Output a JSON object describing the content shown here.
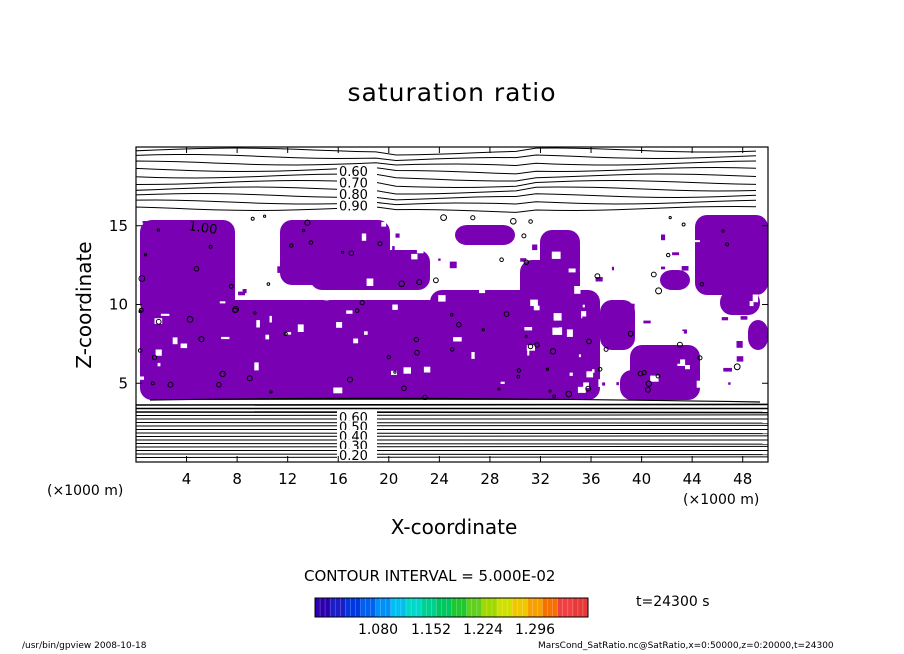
{
  "chart_data": {
    "type": "heatmap",
    "title": "saturation ratio",
    "xlabel": "X-coordinate",
    "ylabel": "Z-coordinate",
    "x_unit_label": "(×1000 m)",
    "xlim": [
      0,
      50
    ],
    "ylim": [
      0,
      20
    ],
    "x_ticks": [
      4,
      8,
      12,
      16,
      20,
      24,
      28,
      32,
      36,
      40,
      44,
      48
    ],
    "y_ticks": [
      5,
      10,
      15
    ],
    "contour_interval_text": "CONTOUR INTERVAL = 5.000E-02",
    "contour_labels_upper": [
      "0.60",
      "0.70",
      "0.80",
      "0.90"
    ],
    "contour_labels_lower": [
      "0.60",
      "0.50",
      "0.40",
      "0.30",
      "0.20"
    ],
    "contour_label_inline": "1.00",
    "shaded_threshold": 1.0,
    "shaded_color": "#7a00b4",
    "colorbar": {
      "tick_labels": [
        "1.080",
        "1.152",
        "1.224",
        "1.296"
      ],
      "colors": [
        "#2c00b0",
        "#1c1cc8",
        "#0038e0",
        "#0060f0",
        "#0090f8",
        "#00c0f0",
        "#00d8c8",
        "#00d090",
        "#00c860",
        "#20c830",
        "#60d020",
        "#a0d800",
        "#d0e000",
        "#f0c800",
        "#f8a000",
        "#f87000",
        "#f04040",
        "#e83838"
      ]
    },
    "time_label": "t=24300 s"
  },
  "footer": {
    "left": "/usr/bin/gpview   2008-10-18",
    "right": "MarsCond_SatRatio.nc@SatRatio,x=0:50000,z=0:20000,t=24300"
  }
}
